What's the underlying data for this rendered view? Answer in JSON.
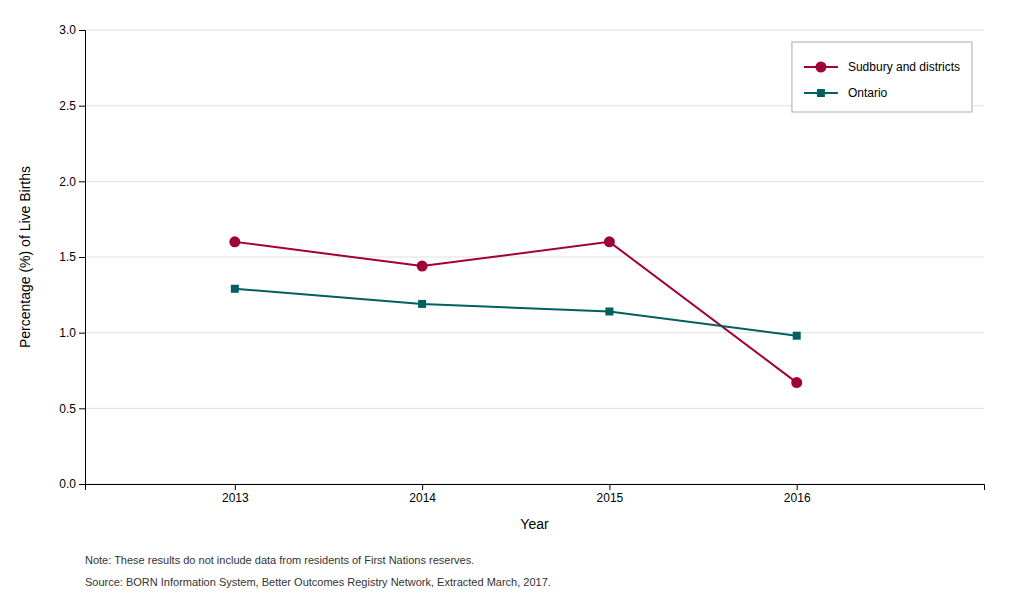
{
  "chart_data": {
    "type": "line",
    "x": [
      2013,
      2014,
      2015,
      2016
    ],
    "xlabel": "Year",
    "ylabel": "Percentage (%) of Live Births",
    "series": [
      {
        "name": "Sudbury and districts",
        "color": "#a0003a",
        "marker": "circle",
        "values": [
          1.6,
          1.44,
          1.6,
          0.67
        ]
      },
      {
        "name": "Ontario",
        "color": "#006060",
        "marker": "square",
        "values": [
          1.29,
          1.19,
          1.14,
          0.98
        ]
      }
    ],
    "xlim": [
      2012.2,
      2017.0
    ],
    "xticks": [
      2013,
      2014,
      2015,
      2016
    ],
    "ylim": [
      0.0,
      3.0
    ],
    "yticks": [
      {
        "value": 0,
        "label": "0.0"
      },
      0.5,
      {
        "value": 1,
        "label": "1.0"
      },
      1.5,
      {
        "value": 2,
        "label": "2.0"
      },
      2.5,
      {
        "value": 3,
        "label": "3.0"
      }
    ],
    "grid": true,
    "legend": "upper right",
    "annotations": [
      "Note: These results do not include data from residents of First Nations reserves.",
      "Source: BORN Information System, Better Outcomes Registry Network, Extracted March, 2017."
    ]
  }
}
